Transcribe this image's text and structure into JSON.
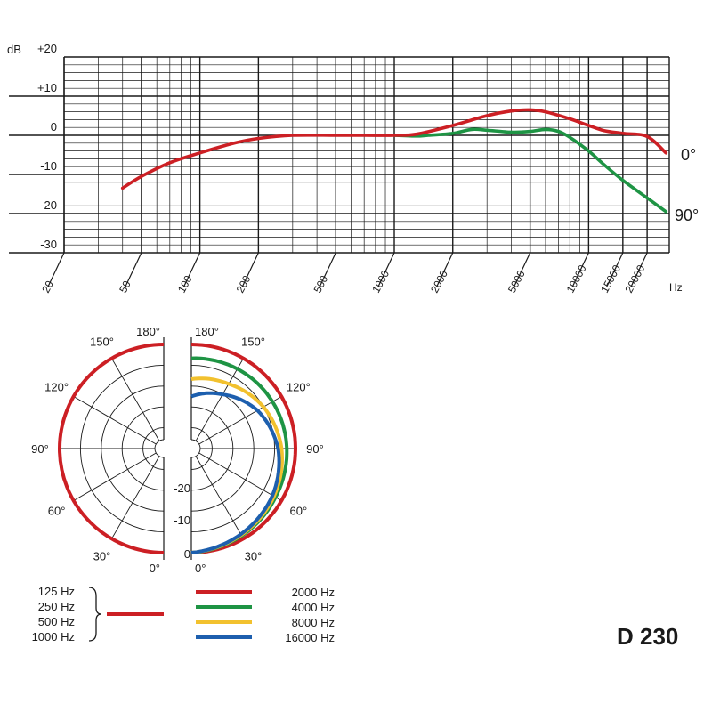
{
  "chart_data": [
    {
      "type": "line",
      "title": "",
      "xlabel": "Hz",
      "ylabel": "dB",
      "x_scale": "log",
      "xlim": [
        20,
        26000
      ],
      "ylim": [
        -30,
        20
      ],
      "grid": true,
      "legend": "right",
      "x_tick_labels": [
        "20",
        "50",
        "100",
        "200",
        "500",
        "1000",
        "2000",
        "5000",
        "10000",
        "15000",
        "20000"
      ],
      "y_tick_labels": [
        "+20",
        "+10",
        "0",
        "-10",
        "-20",
        "-30"
      ],
      "series": [
        {
          "name": "0°",
          "color": "#cc1f24",
          "x": [
            40,
            50,
            70,
            100,
            150,
            200,
            300,
            500,
            700,
            1000,
            1300,
            2000,
            3000,
            4000,
            5000,
            6000,
            8000,
            10000,
            12000,
            15000,
            20000,
            25000
          ],
          "y": [
            -13.5,
            -10.5,
            -7,
            -4.5,
            -2,
            -0.8,
            0,
            0,
            0,
            0,
            0.3,
            2.5,
            5,
            6.2,
            6.5,
            6,
            4.2,
            2.5,
            1.2,
            0.5,
            -0.3,
            -4.5
          ]
        },
        {
          "name": "90°",
          "color": "#1e9444",
          "x": [
            1000,
            1300,
            1500,
            2000,
            2500,
            3000,
            4000,
            5000,
            6000,
            7000,
            8000,
            10000,
            12000,
            15000,
            20000,
            25000
          ],
          "y": [
            0,
            -0.2,
            0,
            0.5,
            1.5,
            1.3,
            0.8,
            1,
            1.5,
            1,
            -0.5,
            -4,
            -7.5,
            -11.5,
            -16,
            -19.5
          ]
        }
      ]
    },
    {
      "type": "polar",
      "angle_labels_left": [
        "180°",
        "150°",
        "120°",
        "90°",
        "60°",
        "30°",
        "0°"
      ],
      "angle_labels_right": [
        "180°",
        "150°",
        "120°",
        "90°",
        "60°",
        "30°",
        "0°"
      ],
      "radial_labels": [
        "-20",
        "-10",
        "0"
      ],
      "series": [
        {
          "name": "125 Hz",
          "color": "#cc1f24",
          "side": "left",
          "level_db": 0
        },
        {
          "name": "250 Hz",
          "color": "#cc1f24",
          "side": "left",
          "level_db": 0
        },
        {
          "name": "500 Hz",
          "color": "#cc1f24",
          "side": "left",
          "level_db": 0
        },
        {
          "name": "1000 Hz",
          "color": "#cc1f24",
          "side": "left",
          "level_db": 0
        },
        {
          "name": "2000 Hz",
          "color": "#cc1f24",
          "side": "right",
          "points": [
            [
              0,
              0
            ],
            [
              60,
              0
            ],
            [
              90,
              0
            ],
            [
              120,
              0
            ],
            [
              150,
              0
            ],
            [
              180,
              0
            ]
          ]
        },
        {
          "name": "4000 Hz",
          "color": "#1e9444",
          "side": "right",
          "points": [
            [
              0,
              0
            ],
            [
              60,
              -2
            ],
            [
              90,
              -2.5
            ],
            [
              120,
              -3
            ],
            [
              150,
              -3.5
            ],
            [
              180,
              -4
            ]
          ]
        },
        {
          "name": "8000 Hz",
          "color": "#f2c12e",
          "side": "right",
          "points": [
            [
              0,
              0
            ],
            [
              60,
              -2.5
            ],
            [
              90,
              -4
            ],
            [
              120,
              -6
            ],
            [
              150,
              -8.5
            ],
            [
              180,
              -10
            ]
          ]
        },
        {
          "name": "16000 Hz",
          "color": "#1d5fae",
          "side": "right",
          "points": [
            [
              0,
              0
            ],
            [
              60,
              -3
            ],
            [
              90,
              -5
            ],
            [
              120,
              -8
            ],
            [
              150,
              -12
            ],
            [
              180,
              -15
            ]
          ]
        }
      ],
      "legend_left": [
        "125 Hz",
        "250 Hz",
        "500 Hz",
        "1000 Hz"
      ],
      "legend_right": [
        "2000 Hz",
        "4000 Hz",
        "8000 Hz",
        "16000 Hz"
      ]
    }
  ],
  "model_name": "D 230"
}
